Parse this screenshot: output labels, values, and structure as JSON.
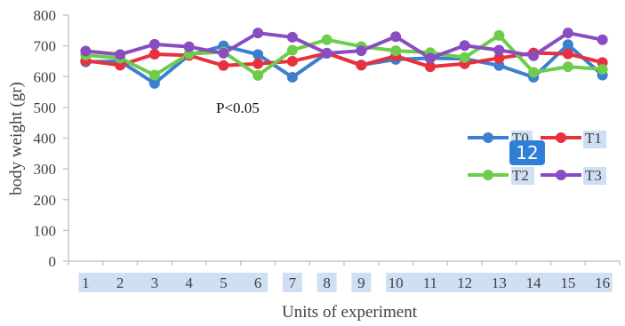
{
  "chart_data": {
    "type": "line",
    "xlabel": "Units of experiment",
    "ylabel": "body weight (gr)",
    "ylim": [
      0,
      800
    ],
    "yticks": [
      0,
      100,
      200,
      300,
      400,
      500,
      600,
      700,
      800
    ],
    "categories": [
      "1",
      "2",
      "3",
      "4",
      "5",
      "6",
      "7",
      "8",
      "9",
      "10",
      "11",
      "12",
      "13",
      "14",
      "15",
      "16"
    ],
    "annotation": "P<0.05",
    "grid": false,
    "legend_position": "right",
    "series": [
      {
        "name": "T0",
        "color": "#3b7fd0",
        "values": [
          648,
          650,
          578,
          670,
          700,
          672,
          598,
          676,
          638,
          656,
          660,
          658,
          636,
          598,
          704,
          605
        ]
      },
      {
        "name": "T1",
        "color": "#e8303e",
        "values": [
          652,
          637,
          673,
          669,
          636,
          642,
          650,
          676,
          637,
          667,
          632,
          642,
          660,
          677,
          674,
          646
        ]
      },
      {
        "name": "T2",
        "color": "#6ecc4c",
        "values": [
          670,
          660,
          605,
          674,
          680,
          604,
          686,
          720,
          698,
          684,
          678,
          662,
          734,
          614,
          632,
          624
        ]
      },
      {
        "name": "T3",
        "color": "#8a4cc1",
        "values": [
          683,
          672,
          705,
          697,
          676,
          742,
          728,
          676,
          684,
          730,
          660,
          701,
          686,
          668,
          742,
          720
        ]
      }
    ]
  },
  "badge": {
    "text": "12",
    "color": "#2f7fd6"
  },
  "highlight_color": "#cfe0f5"
}
